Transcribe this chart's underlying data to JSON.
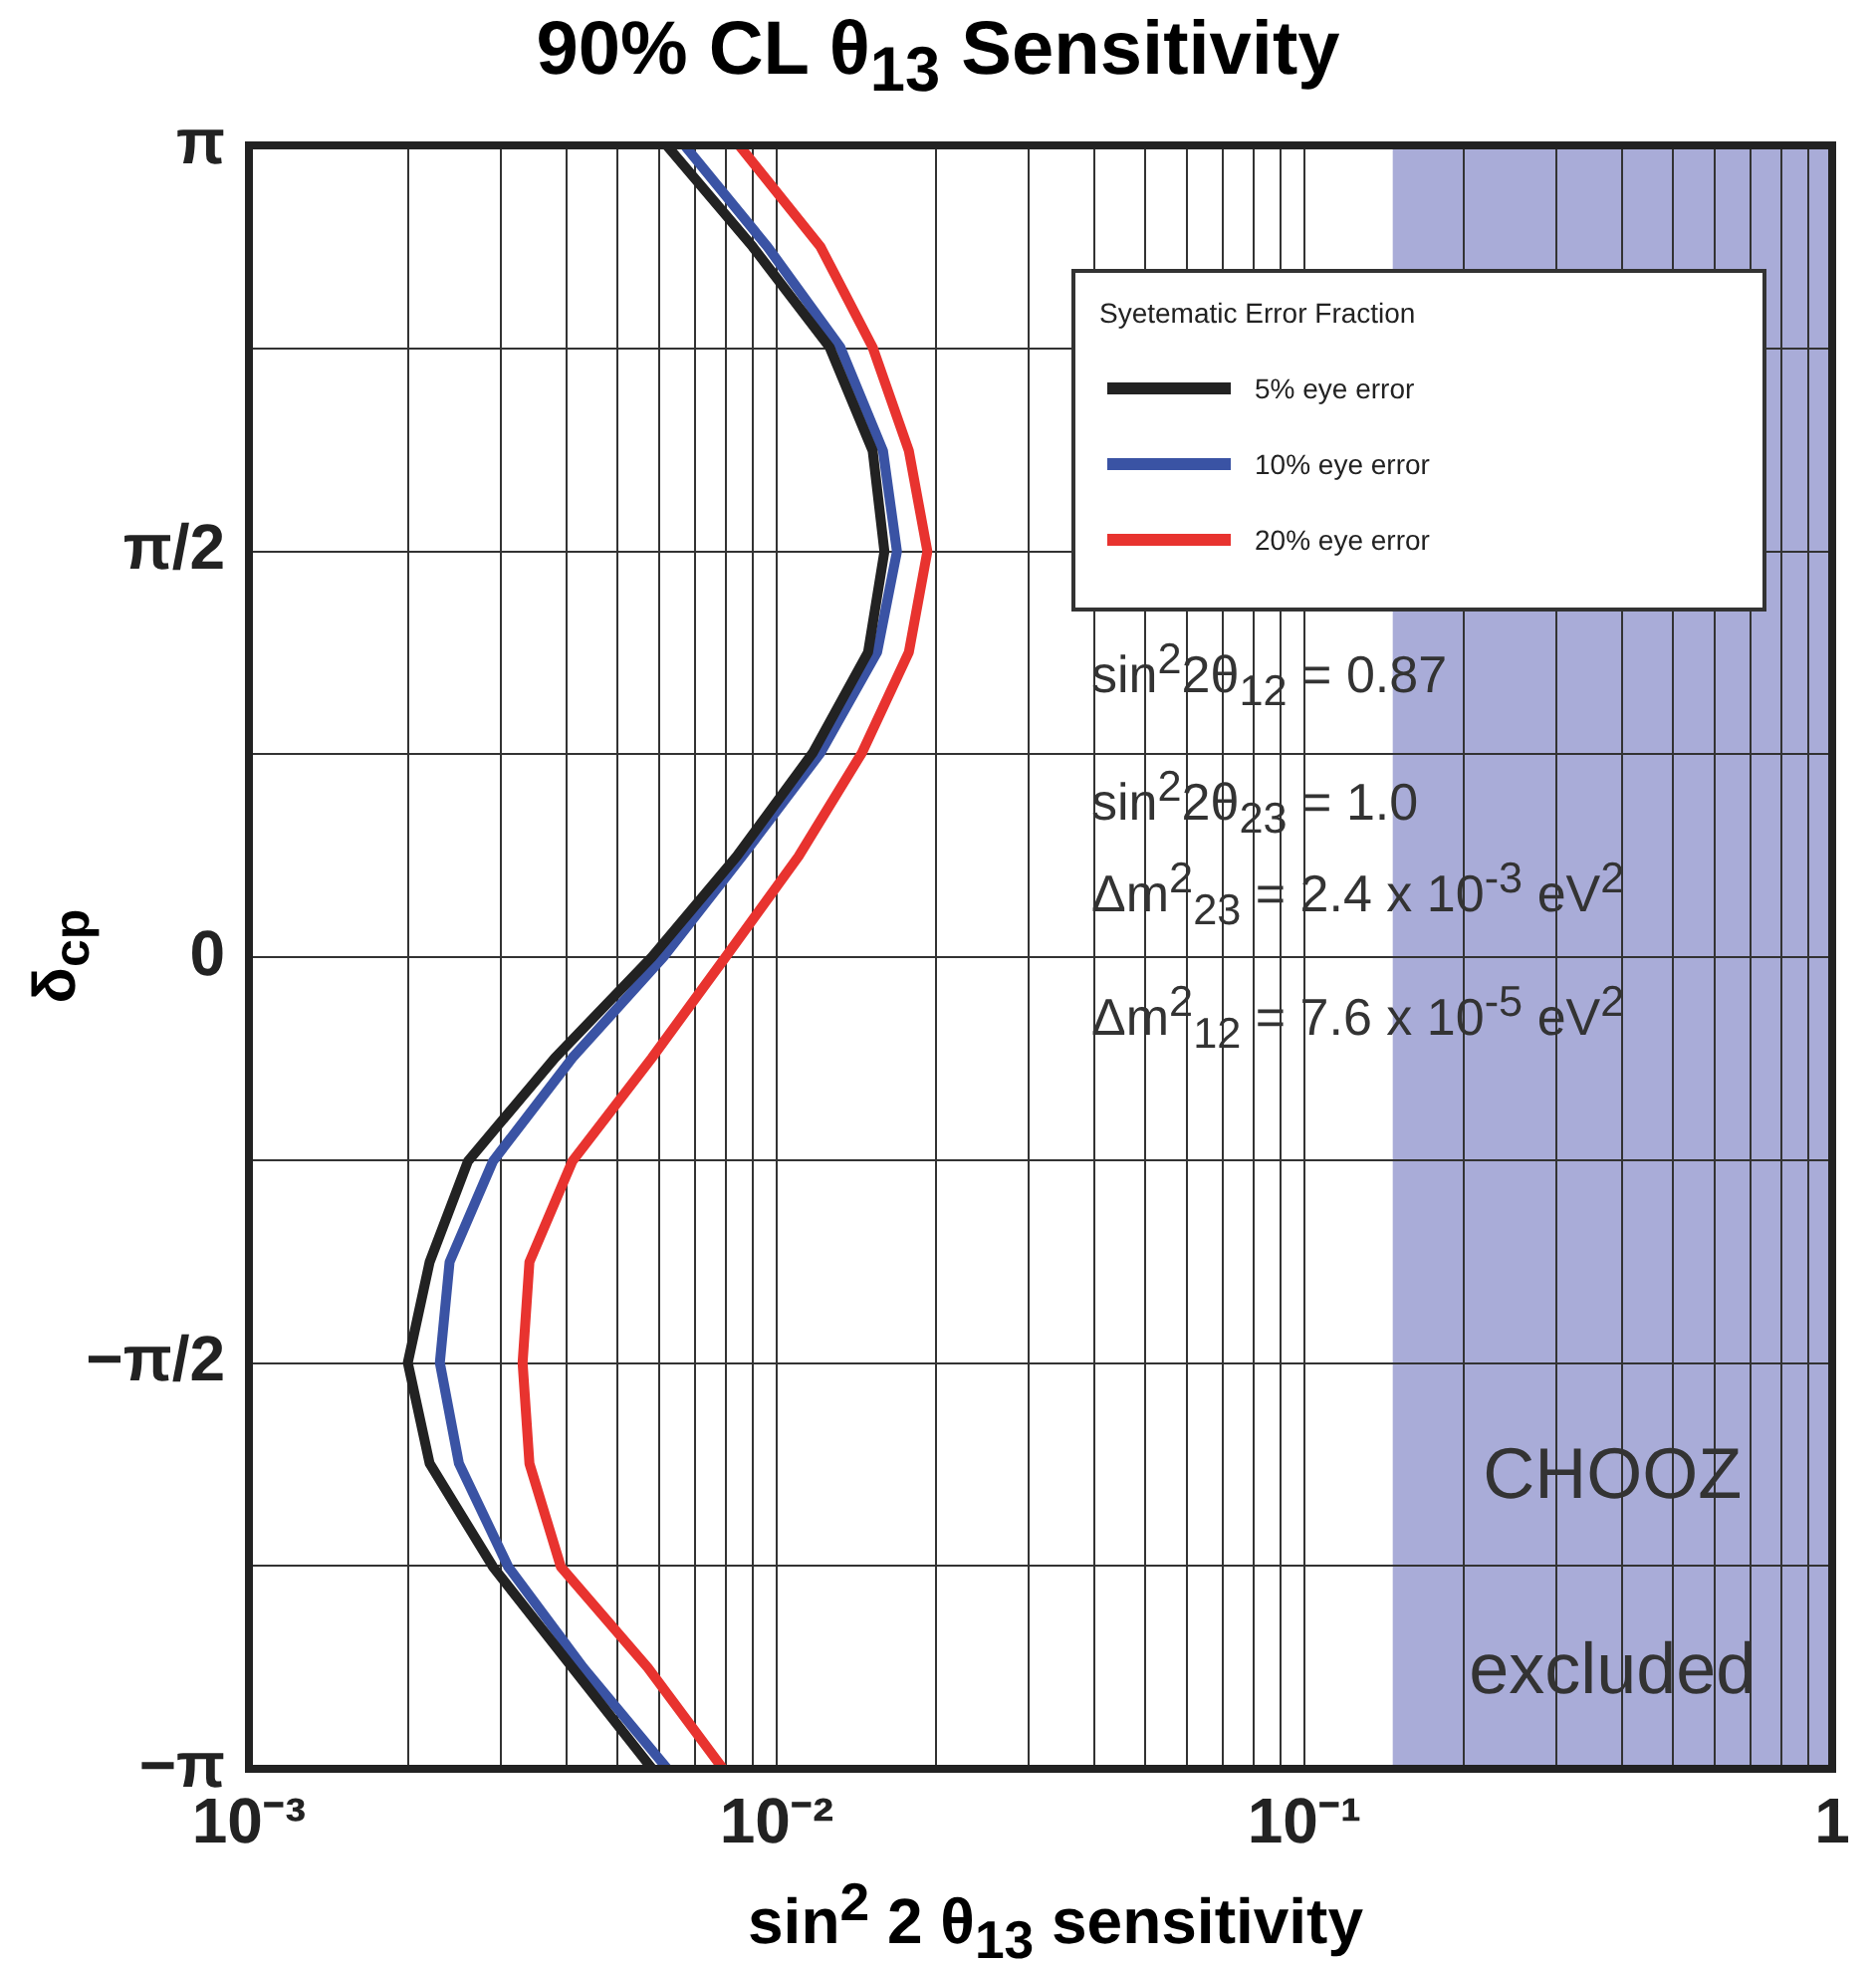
{
  "chart_data": {
    "type": "line",
    "title": "90% CL θ$_{13}$ Sensitivity",
    "xlabel": "sin$^{2}$ 2 θ$_{13}$ sensitivity",
    "ylabel": "δ$_{cp}$",
    "legend_title": "Syetematic Error Fraction",
    "legend": "top right",
    "log": "x",
    "grid": true,
    "marker": "none",
    "line_style": "solid",
    "xlim": [
      0.001,
      1
    ],
    "ylim": [
      -3.1416,
      3.1416
    ],
    "xticks": [
      {
        "value": 0.001,
        "label": "10⁻³"
      },
      {
        "value": 0.002,
        "label": null
      },
      {
        "value": 0.003,
        "label": null
      },
      {
        "value": 0.004,
        "label": null
      },
      {
        "value": 0.005,
        "label": null
      },
      {
        "value": 0.006,
        "label": null
      },
      {
        "value": 0.007,
        "label": null
      },
      {
        "value": 0.008,
        "label": null
      },
      {
        "value": 0.009,
        "label": null
      },
      {
        "value": 0.01,
        "label": "10⁻²"
      },
      {
        "value": 0.02,
        "label": null
      },
      {
        "value": 0.03,
        "label": null
      },
      {
        "value": 0.04,
        "label": null
      },
      {
        "value": 0.05,
        "label": null
      },
      {
        "value": 0.06,
        "label": null
      },
      {
        "value": 0.07,
        "label": null
      },
      {
        "value": 0.08,
        "label": null
      },
      {
        "value": 0.09,
        "label": null
      },
      {
        "value": 0.1,
        "label": "10⁻¹"
      },
      {
        "value": 0.2,
        "label": null
      },
      {
        "value": 0.3,
        "label": null
      },
      {
        "value": 0.4,
        "label": null
      },
      {
        "value": 0.5,
        "label": null
      },
      {
        "value": 0.6,
        "label": null
      },
      {
        "value": 0.7,
        "label": null
      },
      {
        "value": 0.8,
        "label": null
      },
      {
        "value": 0.9,
        "label": null
      },
      1
    ],
    "yticks": [
      {
        "value": -3.1416,
        "label": "−π"
      },
      {
        "value": -2.3562,
        "label": null
      },
      {
        "value": -1.5708,
        "label": "−π/2"
      },
      {
        "value": -0.7854,
        "label": null
      },
      0,
      {
        "value": 0.7854,
        "label": null
      },
      {
        "value": 1.5708,
        "label": "π/2"
      },
      {
        "value": 2.3562,
        "label": null
      },
      {
        "value": 3.1416,
        "label": "π"
      }
    ],
    "series": [
      {
        "name": "5% eye error",
        "color": "#222222",
        "x": [
          0.0062,
          0.009,
          0.0126,
          0.0152,
          0.016,
          0.0149,
          0.0117,
          0.0084,
          0.0058,
          0.0038,
          0.0026,
          0.0022,
          0.002,
          0.0022,
          0.0029,
          0.0041,
          0.0058
        ],
        "values": [
          3.14,
          2.75,
          2.36,
          1.96,
          1.57,
          1.18,
          0.79,
          0.39,
          0,
          -0.39,
          -0.79,
          -1.18,
          -1.57,
          -1.96,
          -2.36,
          -2.75,
          -3.14
        ]
      },
      {
        "name": "10% eye error",
        "color": "#3a53a4",
        "x": [
          0.0067,
          0.0096,
          0.0132,
          0.0159,
          0.0169,
          0.0155,
          0.0121,
          0.0086,
          0.0061,
          0.0041,
          0.0029,
          0.0024,
          0.0023,
          0.0025,
          0.0031,
          0.0043,
          0.0062
        ],
        "values": [
          3.14,
          2.75,
          2.36,
          1.96,
          1.57,
          1.18,
          0.79,
          0.39,
          0,
          -0.39,
          -0.79,
          -1.18,
          -1.57,
          -1.96,
          -2.36,
          -2.75,
          -3.14
        ]
      },
      {
        "name": "20% eye error",
        "color": "#e8332f",
        "x": [
          0.0085,
          0.0121,
          0.0152,
          0.0178,
          0.0193,
          0.0178,
          0.0145,
          0.011,
          0.008,
          0.0058,
          0.0041,
          0.0034,
          0.0033,
          0.0034,
          0.0039,
          0.0057,
          0.0079
        ],
        "values": [
          3.14,
          2.75,
          2.36,
          1.96,
          1.57,
          1.18,
          0.79,
          0.39,
          0,
          -0.39,
          -0.79,
          -1.18,
          -1.57,
          -1.96,
          -2.36,
          -2.75,
          -3.14
        ]
      }
    ],
    "bands": [
      {
        "axis": "x",
        "from": 0.147,
        "to": 1,
        "label": "CHOOZ excluded",
        "color": "#a9acd8"
      }
    ],
    "annotations": [
      "sin$^{2}$2θ$_{12}$ = 0.87",
      "sin$^{2}$2θ$_{23}$ = 1.0",
      "Δm$^{2}$$_{23}$ = 2.4 x 10$^{-3}$ eV$^{2}$",
      "Δm$^{2}$$_{12}$ = 7.6 x 10$^{-5}$ eV$^{2}$"
    ]
  }
}
